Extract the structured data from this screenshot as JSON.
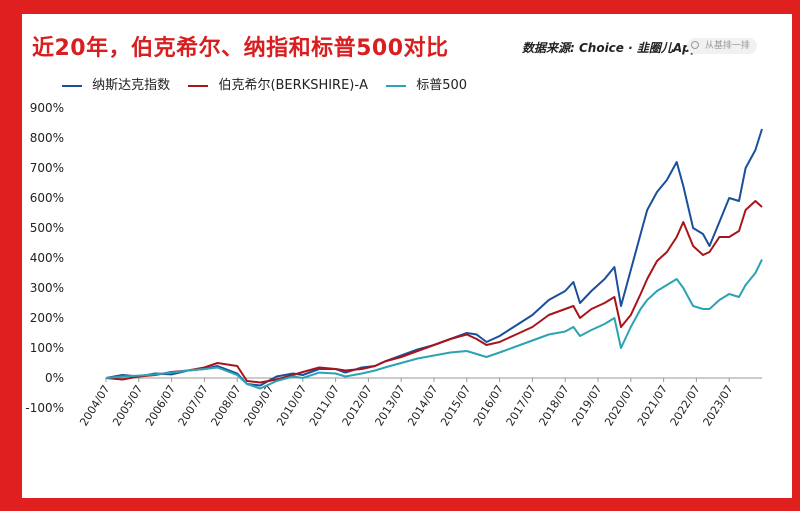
{
  "header": {
    "title": "近20年，伯克希尔、纳指和标普500对比",
    "source": "数据来源: Choice · 韭圈儿App",
    "search_placeholder": "从基排一排"
  },
  "colors": {
    "frame": "#e0201e",
    "title": "#d81e1e"
  },
  "chart_data": {
    "type": "line",
    "title": "",
    "xlabel": "",
    "ylabel": "",
    "ylim": [
      -100,
      900
    ],
    "yticks": [
      "-100%",
      "0%",
      "100%",
      "200%",
      "300%",
      "400%",
      "500%",
      "600%",
      "700%",
      "800%",
      "900%"
    ],
    "ytick_values": [
      -100,
      0,
      100,
      200,
      300,
      400,
      500,
      600,
      700,
      800,
      900
    ],
    "xlim": [
      2004.5,
      2024.5
    ],
    "xticks": [
      "2004/07",
      "2005/07",
      "2006/07",
      "2007/07",
      "2008/07",
      "2009/07",
      "2010/07",
      "2011/07",
      "2012/07",
      "2013/07",
      "2014/07",
      "2015/07",
      "2016/07",
      "2017/07",
      "2018/07",
      "2019/07",
      "2020/07",
      "2021/07",
      "2022/07",
      "2023/07"
    ],
    "xtick_values": [
      2004.5,
      2005.5,
      2006.5,
      2007.5,
      2008.5,
      2009.5,
      2010.5,
      2011.5,
      2012.5,
      2013.5,
      2014.5,
      2015.5,
      2016.5,
      2017.5,
      2018.5,
      2019.5,
      2020.5,
      2021.5,
      2022.5,
      2023.5
    ],
    "grid": false,
    "legend_position": "top-left",
    "series": [
      {
        "name": "纳斯达克指数",
        "color": "#1a4f9c",
        "x": [
          2004.5,
          2005.0,
          2005.5,
          2006.0,
          2006.5,
          2007.0,
          2007.5,
          2007.9,
          2008.5,
          2008.8,
          2009.2,
          2009.7,
          2010.2,
          2010.5,
          2011.0,
          2011.5,
          2011.8,
          2012.3,
          2012.7,
          2013.0,
          2013.5,
          2014.0,
          2014.5,
          2015.0,
          2015.5,
          2015.8,
          2016.1,
          2016.5,
          2017.0,
          2017.5,
          2018.0,
          2018.5,
          2018.75,
          2018.95,
          2019.3,
          2019.7,
          2020.0,
          2020.2,
          2020.5,
          2020.8,
          2021.0,
          2021.3,
          2021.6,
          2021.9,
          2022.1,
          2022.4,
          2022.7,
          2022.9,
          2023.2,
          2023.5,
          2023.8,
          2024.0,
          2024.3,
          2024.5
        ],
        "y": [
          0,
          10,
          5,
          15,
          12,
          25,
          30,
          40,
          15,
          -20,
          -25,
          5,
          15,
          10,
          30,
          30,
          18,
          35,
          40,
          55,
          75,
          95,
          110,
          130,
          150,
          145,
          120,
          140,
          175,
          210,
          260,
          290,
          320,
          250,
          290,
          330,
          370,
          240,
          360,
          480,
          560,
          620,
          660,
          720,
          640,
          500,
          480,
          440,
          520,
          600,
          590,
          700,
          760,
          830
        ]
      },
      {
        "name": "伯克希尔(BERKSHIRE)-A",
        "color": "#a8141b",
        "x": [
          2004.5,
          2005.0,
          2005.5,
          2006.0,
          2006.5,
          2007.0,
          2007.5,
          2007.9,
          2008.5,
          2008.8,
          2009.2,
          2009.7,
          2010.2,
          2010.5,
          2011.0,
          2011.5,
          2011.8,
          2012.3,
          2012.7,
          2013.0,
          2013.5,
          2014.0,
          2014.5,
          2015.0,
          2015.5,
          2015.8,
          2016.1,
          2016.5,
          2017.0,
          2017.5,
          2018.0,
          2018.5,
          2018.75,
          2018.95,
          2019.3,
          2019.7,
          2020.0,
          2020.2,
          2020.5,
          2020.8,
          2021.0,
          2021.3,
          2021.6,
          2021.9,
          2022.1,
          2022.4,
          2022.7,
          2022.9,
          2023.2,
          2023.5,
          2023.8,
          2024.0,
          2024.3,
          2024.5
        ],
        "y": [
          0,
          -5,
          5,
          10,
          20,
          25,
          35,
          50,
          40,
          -10,
          -15,
          -5,
          10,
          20,
          35,
          30,
          25,
          30,
          40,
          55,
          70,
          90,
          110,
          130,
          145,
          130,
          110,
          120,
          145,
          170,
          210,
          230,
          240,
          200,
          230,
          250,
          270,
          170,
          210,
          280,
          330,
          390,
          420,
          470,
          520,
          440,
          410,
          420,
          470,
          470,
          490,
          560,
          590,
          570
        ]
      },
      {
        "name": "标普500",
        "color": "#2aa3b4",
        "x": [
          2004.5,
          2005.0,
          2005.5,
          2006.0,
          2006.5,
          2007.0,
          2007.5,
          2007.9,
          2008.5,
          2008.8,
          2009.2,
          2009.7,
          2010.2,
          2010.5,
          2011.0,
          2011.5,
          2011.8,
          2012.3,
          2012.7,
          2013.0,
          2013.5,
          2014.0,
          2014.5,
          2015.0,
          2015.5,
          2015.8,
          2016.1,
          2016.5,
          2017.0,
          2017.5,
          2018.0,
          2018.5,
          2018.75,
          2018.95,
          2019.3,
          2019.7,
          2020.0,
          2020.2,
          2020.5,
          2020.8,
          2021.0,
          2021.3,
          2021.6,
          2021.9,
          2022.1,
          2022.4,
          2022.7,
          2022.9,
          2023.2,
          2023.5,
          2023.8,
          2024.0,
          2024.3,
          2024.5
        ],
        "y": [
          0,
          5,
          8,
          12,
          18,
          25,
          30,
          35,
          10,
          -20,
          -35,
          -10,
          5,
          0,
          18,
          15,
          5,
          15,
          25,
          35,
          50,
          65,
          75,
          85,
          90,
          80,
          70,
          85,
          105,
          125,
          145,
          155,
          170,
          140,
          160,
          180,
          200,
          100,
          170,
          230,
          260,
          290,
          310,
          330,
          300,
          240,
          230,
          230,
          260,
          280,
          270,
          310,
          350,
          395
        ]
      }
    ]
  }
}
